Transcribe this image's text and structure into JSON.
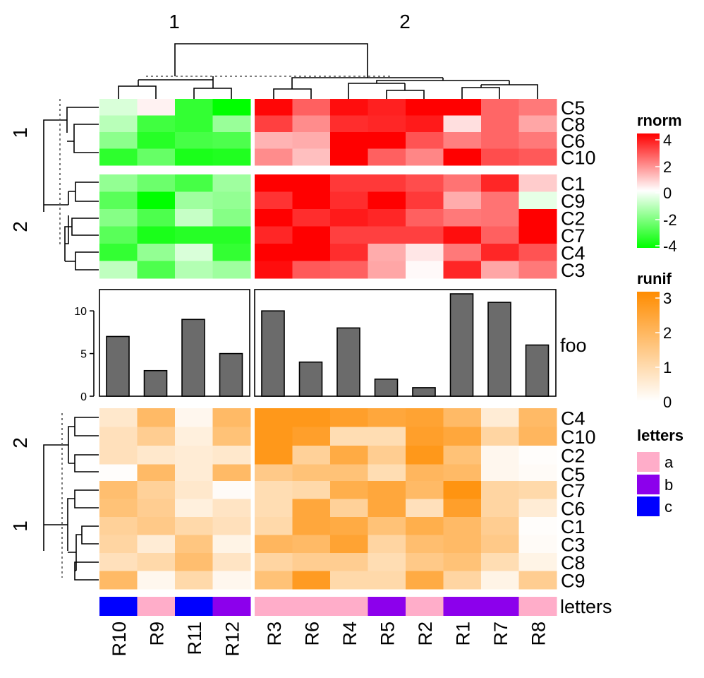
{
  "chart_data": {
    "type": "heatmap",
    "title": "",
    "column_split_titles": [
      "1",
      "2"
    ],
    "columns": [
      "R10",
      "R9",
      "R11",
      "R12",
      "R3",
      "R6",
      "R4",
      "R5",
      "R2",
      "R1",
      "R7",
      "R8"
    ],
    "column_groups": [
      4,
      8
    ],
    "heatmap_rnorm": {
      "legend_title": "rnorm",
      "colors": {
        "low": "#00ff00",
        "mid": "#ffffff",
        "high": "#ff0000"
      },
      "range": [
        -4,
        4
      ],
      "legend_ticks": [
        "4",
        "2",
        "0",
        "-2",
        "-4"
      ],
      "row_split_titles": [
        "1",
        "2"
      ],
      "row_groups": [
        {
          "title": "1",
          "rows": [
            "C5",
            "C8",
            "C6",
            "C10"
          ]
        },
        {
          "title": "2",
          "rows": [
            "C1",
            "C9",
            "C2",
            "C7",
            "C4",
            "C3"
          ]
        }
      ],
      "values": [
        [
          -0.6,
          0.2,
          -3.2,
          -4.0,
          3.9,
          2.5,
          3.8,
          3.5,
          4.2,
          4.3,
          2.4,
          2.1
        ],
        [
          -1.1,
          -3.0,
          -3.2,
          -1.6,
          3.0,
          1.8,
          3.3,
          3.4,
          3.6,
          0.5,
          2.4,
          1.4
        ],
        [
          -1.8,
          -3.4,
          -2.9,
          -2.8,
          1.2,
          1.3,
          4.2,
          4.3,
          2.7,
          2.0,
          2.4,
          2.1
        ],
        [
          -3.3,
          -2.4,
          -3.6,
          -3.5,
          1.8,
          1.0,
          4.1,
          2.5,
          1.9,
          4.3,
          2.8,
          2.6
        ],
        [
          -1.7,
          -2.3,
          -2.9,
          -1.5,
          4.2,
          4.2,
          3.1,
          3.1,
          2.8,
          2.2,
          3.4,
          0.8
        ],
        [
          -2.6,
          -4.0,
          -1.5,
          -1.7,
          3.2,
          4.2,
          3.3,
          4.2,
          3.1,
          1.3,
          2.2,
          -0.4
        ],
        [
          -1.9,
          -2.8,
          -0.9,
          -1.9,
          4.2,
          3.3,
          3.6,
          3.4,
          2.5,
          2.1,
          2.2,
          4.4
        ],
        [
          -2.6,
          -3.6,
          -3.4,
          -3.4,
          3.4,
          4.2,
          3.0,
          3.0,
          3.0,
          3.8,
          2.5,
          4.4
        ],
        [
          -3.2,
          -1.7,
          -0.6,
          -3.2,
          4.1,
          4.3,
          3.3,
          1.3,
          0.4,
          2.1,
          3.4,
          2.7
        ],
        [
          -1.0,
          -2.8,
          -1.2,
          -1.5,
          3.8,
          2.6,
          2.5,
          1.4,
          0.1,
          3.4,
          1.4,
          2.1
        ]
      ]
    },
    "annotation_foo": {
      "label": "foo",
      "type": "bar",
      "values": [
        7,
        3,
        9,
        5,
        10,
        4,
        8,
        2,
        1,
        12,
        11,
        6
      ],
      "ylim": [
        0,
        12.5
      ],
      "yticks": [
        "0",
        "5",
        "10"
      ]
    },
    "heatmap_runif": {
      "legend_title": "runif",
      "colors": {
        "low": "#ffffff",
        "high": "#ff8c00"
      },
      "range": [
        0,
        3
      ],
      "legend_ticks": [
        "3",
        "2",
        "1",
        "0"
      ],
      "row_split_titles": [
        "2",
        "1"
      ],
      "row_groups": [
        {
          "title": "2",
          "rows": [
            "C4",
            "C10",
            "C2",
            "C5"
          ]
        },
        {
          "title": "1",
          "rows": [
            "C7",
            "C6",
            "C1",
            "C3",
            "C8",
            "C9"
          ]
        }
      ],
      "values": [
        [
          0.6,
          1.8,
          0.2,
          1.8,
          2.7,
          2.7,
          2.5,
          2.3,
          2.4,
          1.8,
          0.5,
          1.8
        ],
        [
          0.8,
          1.3,
          0.4,
          1.6,
          2.7,
          2.5,
          0.9,
          0.9,
          2.5,
          2.3,
          1.1,
          1.9
        ],
        [
          0.8,
          0.6,
          0.5,
          0.6,
          2.7,
          1.2,
          2.2,
          1.3,
          2.7,
          1.6,
          0.2,
          0.05
        ],
        [
          0.05,
          1.8,
          0.5,
          1.8,
          1.4,
          1.6,
          1.6,
          0.9,
          1.9,
          1.8,
          0.2,
          0.1
        ],
        [
          1.7,
          1.2,
          0.6,
          0.1,
          0.9,
          1.0,
          2.1,
          2.3,
          1.8,
          2.8,
          1.1,
          1.0
        ],
        [
          1.6,
          1.3,
          0.4,
          0.7,
          0.9,
          2.3,
          1.2,
          2.3,
          0.8,
          2.5,
          1.1,
          0.5
        ],
        [
          1.2,
          1.4,
          1.0,
          0.8,
          1.0,
          2.3,
          2.2,
          1.6,
          2.1,
          1.8,
          1.3,
          0.05
        ],
        [
          1.1,
          0.5,
          1.5,
          0.3,
          1.9,
          1.8,
          2.4,
          1.1,
          1.7,
          1.8,
          1.4,
          0.1
        ],
        [
          0.8,
          1.0,
          1.7,
          0.7,
          1.1,
          1.3,
          1.3,
          0.9,
          1.4,
          1.6,
          0.9,
          0.3
        ],
        [
          1.8,
          0.2,
          1.0,
          0.2,
          1.6,
          2.6,
          1.0,
          1.0,
          2.2,
          1.1,
          0.3,
          1.3
        ]
      ]
    },
    "annotation_letters": {
      "label": "letters",
      "legend_title": "letters",
      "levels": [
        {
          "key": "a",
          "color": "#ffadc9"
        },
        {
          "key": "b",
          "color": "#8c00ec"
        },
        {
          "key": "c",
          "color": "#0000ff"
        }
      ],
      "values": [
        "c",
        "a",
        "c",
        "b",
        "a",
        "a",
        "a",
        "b",
        "a",
        "b",
        "b",
        "a"
      ]
    }
  }
}
